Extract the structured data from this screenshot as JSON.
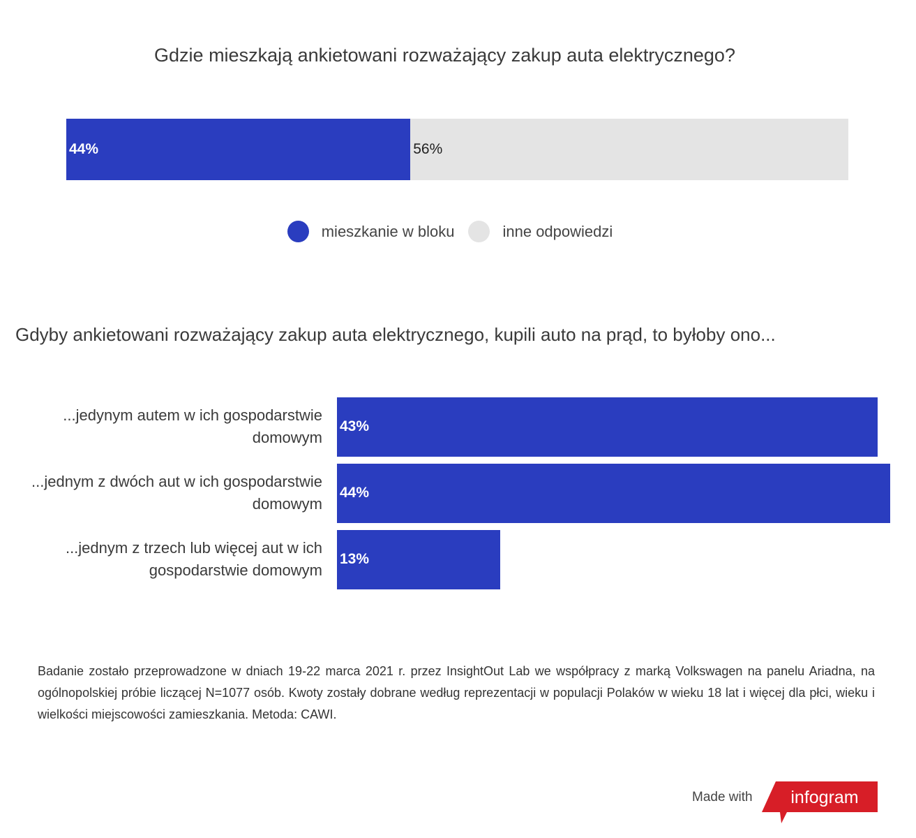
{
  "colors": {
    "primary": "#2a3dbf",
    "secondary": "#e4e4e4",
    "brand": "#d71e27"
  },
  "chart_data": [
    {
      "type": "bar",
      "stacked": true,
      "orientation": "horizontal",
      "title": "Gdzie mieszkają ankietowani rozważający zakup auta elektrycznego?",
      "series": [
        {
          "name": "mieszkanie w bloku",
          "values": [
            44
          ],
          "label": "44%"
        },
        {
          "name": "inne odpowiedzi",
          "values": [
            56
          ],
          "label": "56%"
        }
      ],
      "legend": "bottom-center"
    },
    {
      "type": "bar",
      "orientation": "horizontal",
      "title": "Gdyby ankietowani rozważający zakup auta elektrycznego, kupili auto na prąd, to byłoby ono...",
      "categories": [
        "...jedynym autem w ich gospodarstwie domowym",
        "...jednym z dwóch aut w ich gospodarstwie domowym",
        "...jednym z trzech lub więcej aut w ich gospodarstwie domowym"
      ],
      "values": [
        43,
        44,
        13
      ],
      "labels": [
        "43%",
        "44%",
        "13%"
      ]
    }
  ],
  "footnote": "Badanie zostało przeprowadzone w dniach 19-22 marca 2021 r. przez InsightOut Lab we współpracy z marką Volkswagen na panelu Ariadna, na ogólnopolskiej próbie liczącej N=1077 osób. Kwoty zostały dobrane według reprezentacji w populacji Polaków w wieku 18 lat i więcej dla płci, wieku i wielkości miejscowości zamieszkania. Metoda: CAWI.",
  "credit": {
    "made_with": "Made with",
    "logo": "infogram"
  }
}
